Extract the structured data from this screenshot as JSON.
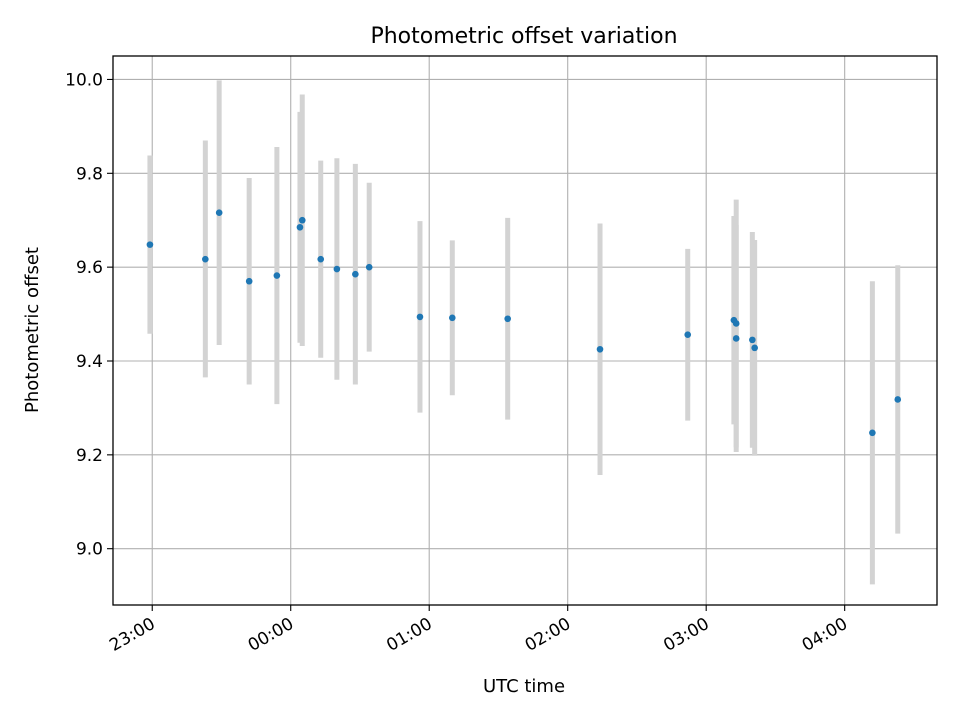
{
  "chart_data": {
    "type": "scatter",
    "title": "Photometric offset variation",
    "xlabel": "UTC time",
    "ylabel": "Photometric offset",
    "x_unit": "time (HH:MM, UTC)",
    "xlim": [
      "22:43",
      "04:40"
    ],
    "ylim": [
      8.88,
      10.05
    ],
    "grid": true,
    "x_tick_labels": [
      "23:00",
      "00:00",
      "01:00",
      "02:00",
      "03:00",
      "04:00"
    ],
    "y_tick_labels": [
      "9.0",
      "9.2",
      "9.4",
      "9.6",
      "9.8",
      "10.0"
    ],
    "y_ticks": [
      9.0,
      9.2,
      9.4,
      9.6,
      9.8,
      10.0
    ],
    "colors": {
      "point": "#1f77b4",
      "errorbar": "#d3d3d3",
      "grid": "#b0b0b0"
    },
    "points": [
      {
        "x": "22:59",
        "y": 9.648,
        "ylow": 9.458,
        "yhigh": 9.838
      },
      {
        "x": "23:23",
        "y": 9.617,
        "ylow": 9.365,
        "yhigh": 9.87
      },
      {
        "x": "23:29",
        "y": 9.716,
        "ylow": 9.434,
        "yhigh": 9.998
      },
      {
        "x": "23:42",
        "y": 9.57,
        "ylow": 9.35,
        "yhigh": 9.79
      },
      {
        "x": "23:54",
        "y": 9.582,
        "ylow": 9.308,
        "yhigh": 9.856
      },
      {
        "x": "00:04",
        "y": 9.685,
        "ylow": 9.439,
        "yhigh": 9.931
      },
      {
        "x": "00:05",
        "y": 9.7,
        "ylow": 9.432,
        "yhigh": 9.968
      },
      {
        "x": "00:13",
        "y": 9.617,
        "ylow": 9.407,
        "yhigh": 9.827
      },
      {
        "x": "00:20",
        "y": 9.596,
        "ylow": 9.36,
        "yhigh": 9.832
      },
      {
        "x": "00:28",
        "y": 9.585,
        "ylow": 9.35,
        "yhigh": 9.82
      },
      {
        "x": "00:34",
        "y": 9.6,
        "ylow": 9.42,
        "yhigh": 9.78
      },
      {
        "x": "00:56",
        "y": 9.494,
        "ylow": 9.29,
        "yhigh": 9.698
      },
      {
        "x": "01:10",
        "y": 9.492,
        "ylow": 9.327,
        "yhigh": 9.657
      },
      {
        "x": "01:34",
        "y": 9.49,
        "ylow": 9.275,
        "yhigh": 9.705
      },
      {
        "x": "02:14",
        "y": 9.425,
        "ylow": 9.157,
        "yhigh": 9.693
      },
      {
        "x": "02:52",
        "y": 9.456,
        "ylow": 9.273,
        "yhigh": 9.639
      },
      {
        "x": "03:12",
        "y": 9.487,
        "ylow": 9.265,
        "yhigh": 9.709
      },
      {
        "x": "03:13",
        "y": 9.48,
        "ylow": 9.216,
        "yhigh": 9.744
      },
      {
        "x": "03:13",
        "y": 9.448,
        "ylow": 9.206,
        "yhigh": 9.69
      },
      {
        "x": "03:20",
        "y": 9.445,
        "ylow": 9.215,
        "yhigh": 9.675
      },
      {
        "x": "03:21",
        "y": 9.428,
        "ylow": 9.198,
        "yhigh": 9.658
      },
      {
        "x": "04:12",
        "y": 9.247,
        "ylow": 8.924,
        "yhigh": 9.57
      },
      {
        "x": "04:23",
        "y": 9.318,
        "ylow": 9.032,
        "yhigh": 9.604
      }
    ]
  }
}
